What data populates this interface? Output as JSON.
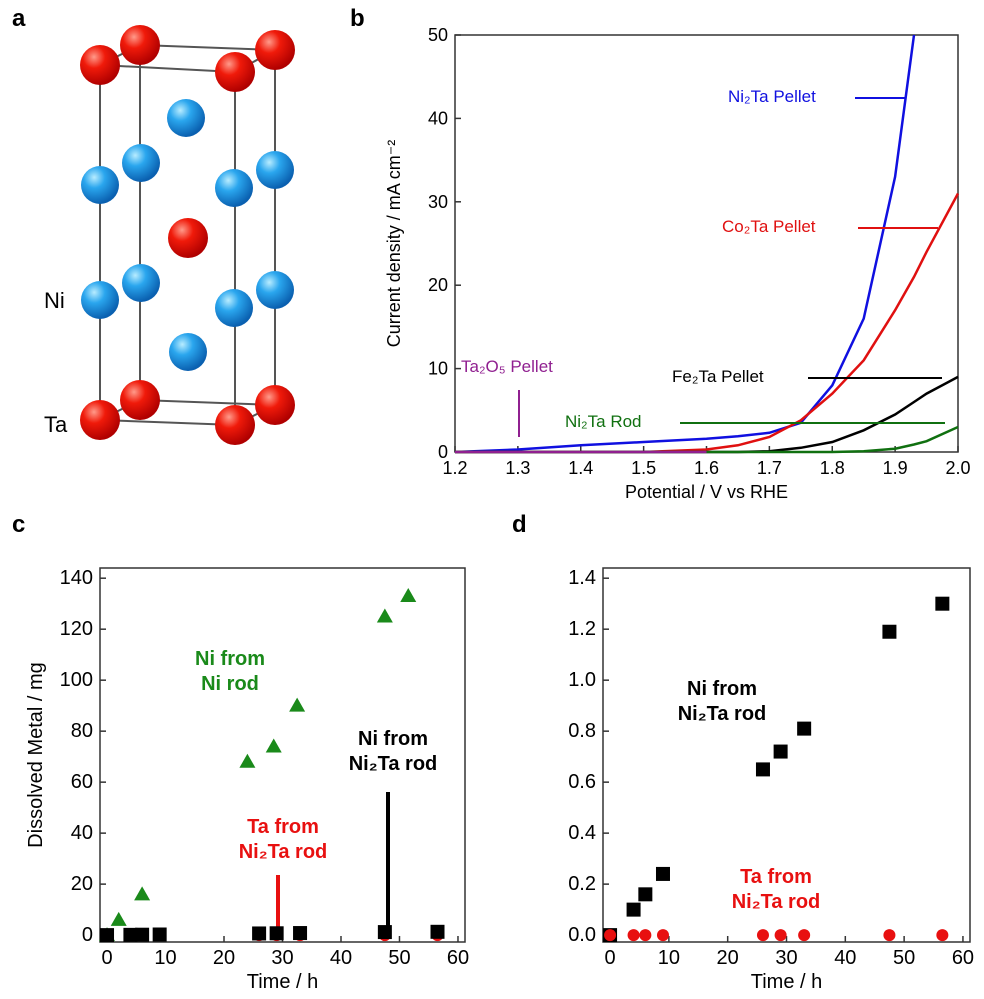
{
  "panel_labels": [
    "a",
    "b",
    "c",
    "d"
  ],
  "structure": {
    "labels": [
      "Ni",
      "Ta"
    ]
  },
  "chart_data": [
    {
      "type": "line",
      "xlabel": "Potential / V vs RHE",
      "ylabel": "Current density / mA cm⁻²",
      "xlim": [
        1.2,
        2.0
      ],
      "ylim": [
        0,
        50
      ],
      "xticks": [
        1.2,
        1.3,
        1.4,
        1.5,
        1.6,
        1.7,
        1.8,
        1.9,
        {
          "value": 2,
          "label": "2.0"
        }
      ],
      "yticks": [
        0,
        10,
        20,
        30,
        40,
        50
      ],
      "x": [
        1.2,
        1.3,
        1.4,
        1.5,
        1.6,
        1.65,
        1.7,
        1.75,
        1.8,
        1.85,
        1.9,
        1.93,
        1.95,
        2.0
      ],
      "series": [
        {
          "name": "Ni₂Ta Pellet",
          "color": "#1010e0",
          "values": [
            0,
            0.3,
            0.8,
            1.2,
            1.6,
            1.9,
            2.3,
            3.5,
            8,
            16,
            33,
            50,
            null,
            null
          ]
        },
        {
          "name": "Co₂Ta Pellet",
          "color": "#e01010",
          "values": [
            0,
            0,
            0,
            0,
            0.3,
            0.8,
            1.8,
            3.8,
            7,
            11,
            17,
            21,
            24,
            31
          ]
        },
        {
          "name": "Fe₂Ta Pellet",
          "color": "#000000",
          "values": [
            0,
            0,
            0,
            0,
            0,
            0,
            0.1,
            0.5,
            1.2,
            2.6,
            4.5,
            6,
            7,
            9
          ]
        },
        {
          "name": "Ni₂Ta Rod",
          "color": "#107010",
          "values": [
            0,
            0,
            0,
            0,
            0,
            0,
            0,
            0,
            0,
            0.1,
            0.4,
            0.9,
            1.3,
            3
          ]
        },
        {
          "name": "Ta₂O₅ Pellet",
          "color": "#902090",
          "values": [
            0,
            0,
            0,
            0,
            0,
            null,
            null,
            null,
            null,
            null,
            null,
            null,
            null,
            null
          ]
        }
      ]
    },
    {
      "type": "scatter",
      "xlabel": "Time / h",
      "ylabel": "Dissolved Metal / mg",
      "xlim": [
        -1.2,
        61.2
      ],
      "ylim": [
        -2.7,
        144
      ],
      "xticks": [
        0,
        10,
        20,
        30,
        40,
        50,
        60
      ],
      "yticks": [
        0,
        20,
        40,
        60,
        80,
        100,
        120,
        140
      ],
      "series": [
        {
          "name": "Ni from\nNi rod",
          "color": "#1a8a1a",
          "marker": "triangle",
          "x": [
            0,
            2,
            6,
            24,
            28.5,
            32.5,
            47.5,
            51.5
          ],
          "values": [
            0,
            6,
            16,
            68,
            74,
            90,
            125,
            133
          ]
        },
        {
          "name": "Ta from\nNi₂Ta rod",
          "color": "#e81010",
          "marker": "circle",
          "x": [
            0,
            4,
            6,
            9,
            26,
            29,
            33,
            47.5,
            56.5
          ],
          "values": [
            0,
            0,
            0,
            0,
            0,
            0,
            0,
            0,
            0
          ]
        },
        {
          "name": "Ni from\nNi₂Ta rod",
          "color": "#000000",
          "marker": "square",
          "x": [
            0,
            4,
            6,
            9,
            26,
            29,
            33,
            47.5,
            56.5
          ],
          "values": [
            0,
            0.1,
            0.16,
            0.24,
            0.65,
            0.72,
            0.81,
            1.19,
            1.3
          ]
        }
      ]
    },
    {
      "type": "scatter",
      "xlabel": "Time / h",
      "xlim": [
        -1.2,
        61.2
      ],
      "ylim": [
        -0.027,
        1.44
      ],
      "xticks": [
        0,
        10,
        20,
        30,
        40,
        50,
        60
      ],
      "yticks": [
        {
          "value": 0,
          "label": "0.0"
        },
        0.2,
        0.4,
        0.6,
        0.8,
        {
          "value": 1,
          "label": "1.0"
        },
        1.2,
        1.4
      ],
      "series": [
        {
          "name": "Ni from\nNi₂Ta rod",
          "color": "#000000",
          "marker": "square",
          "x": [
            0,
            4,
            6,
            9,
            26,
            29,
            33,
            47.5,
            56.5
          ],
          "values": [
            0,
            0.1,
            0.16,
            0.24,
            0.65,
            0.72,
            0.81,
            1.19,
            1.3
          ]
        },
        {
          "name": "Ta from\nNi₂Ta rod",
          "color": "#e81010",
          "marker": "circle",
          "x": [
            0,
            4,
            6,
            9,
            26,
            29,
            33,
            47.5,
            56.5
          ],
          "values": [
            0,
            0,
            0,
            0,
            0,
            0,
            0,
            0,
            0
          ]
        }
      ]
    }
  ]
}
